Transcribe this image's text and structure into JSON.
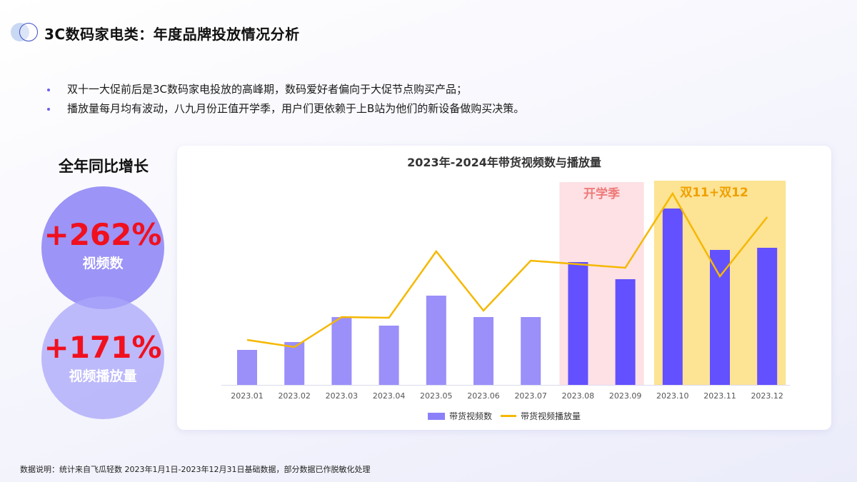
{
  "header": {
    "logo_icon": "overlapping-circles-icon",
    "title": "3C数码家电类：年度品牌投放情况分析"
  },
  "bullets": [
    "双十一大促前后是3C数码家电投放的高峰期，数码爱好者偏向于大促节点购买产品；",
    "播放量每月均有波动，八九月份正值开学季，用户们更依赖于上B站为他们的新设备做购买决策。"
  ],
  "growth": {
    "title": "全年同比增长",
    "items": [
      {
        "value": "+262%",
        "label": "视频数"
      },
      {
        "value": "+171%",
        "label": "视频播放量"
      }
    ]
  },
  "colors": {
    "bar_normal": "#9b8ffa",
    "bar_highlight": "#6350ff",
    "line": "#f5b800",
    "school_band": "#fde1e4",
    "school_text": "#ee7a7a",
    "promo_band": "#fde394",
    "promo_text": "#f0a000",
    "growth_value": "#f0101e"
  },
  "chart_data": {
    "type": "bar+line",
    "title": "2023年-2024年带货视频数与播放量",
    "categories": [
      "2023.01",
      "2023.02",
      "2023.03",
      "2023.04",
      "2023.05",
      "2023.06",
      "2023.07",
      "2023.08",
      "2023.09",
      "2023.10",
      "2023.11",
      "2023.12"
    ],
    "series": [
      {
        "name": "带货视频数",
        "type": "bar",
        "values": [
          49,
          60,
          95,
          83,
          125,
          95,
          95,
          172,
          148,
          247,
          189,
          192
        ]
      },
      {
        "name": "带货视频播放量",
        "type": "line",
        "values": [
          63,
          53,
          95,
          94,
          187,
          104,
          174,
          169,
          164,
          268,
          152,
          235
        ]
      }
    ],
    "highlight_bars": [
      7,
      8,
      9,
      10,
      11
    ],
    "annotations": [
      {
        "label": "开学季",
        "from": "2023.08",
        "to": "2023.09"
      },
      {
        "label": "双11+双12",
        "from": "2023.10",
        "to": "2023.12"
      }
    ],
    "xlabel": "",
    "ylabel": "",
    "y_axis_visible": false,
    "grid": false,
    "legend_position": "bottom",
    "units": "relative (no y-axis shown)"
  },
  "legend": {
    "bar_label": "带货视频数",
    "line_label": "带货视频播放量"
  },
  "footnote": "数据说明：统计来自飞瓜轻数 2023年1月1日-2023年12月31日基础数据，部分数据已作脱敏化处理"
}
